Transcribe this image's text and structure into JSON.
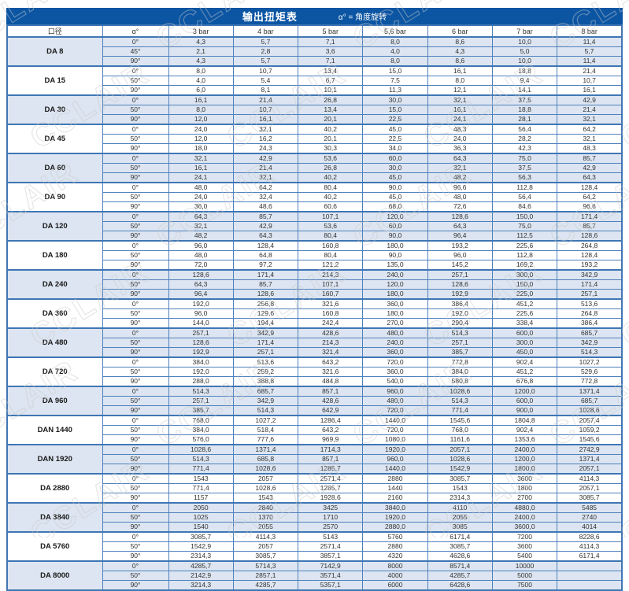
{
  "title": {
    "main": "输出扭矩表",
    "note": "α° = 角度旋转"
  },
  "watermark": "CCLAIR",
  "colors": {
    "title_bg": "#0b55a3",
    "border": "#4f81bd",
    "outer_border": "#3f76b4",
    "row_alt_bg": "#dce5f1",
    "text": "#333333",
    "watermark": "#c9c9c9"
  },
  "columns": [
    "口径",
    "α°",
    "3 bar",
    "4 bar",
    "5 bar",
    "5,6 bar",
    "6 bar",
    "7 bar",
    "8 bar"
  ],
  "groups": [
    {
      "model": "DA 8",
      "rows": [
        {
          "angle": "0°",
          "values": [
            "4,3",
            "5,7",
            "7,1",
            "8,0",
            "8,6",
            "10,0",
            "11,4"
          ]
        },
        {
          "angle": "45°",
          "values": [
            "2,1",
            "2,8",
            "3,6",
            "4,0",
            "4,3",
            "5,0",
            "5,7"
          ]
        },
        {
          "angle": "90°",
          "values": [
            "4,3",
            "5,7",
            "7,1",
            "8,0",
            "8,6",
            "10,0",
            "11,4"
          ]
        }
      ]
    },
    {
      "model": "DA 15",
      "rows": [
        {
          "angle": "0°",
          "values": [
            "8,0",
            "10,7",
            "13,4",
            "15,0",
            "16,1",
            "18,8",
            "21,4"
          ]
        },
        {
          "angle": "50°",
          "values": [
            "4,0",
            "5,4",
            "6,7",
            "7,5",
            "8,0",
            "9,4",
            "10,7"
          ]
        },
        {
          "angle": "90°",
          "values": [
            "6,0",
            "8,1",
            "10,1",
            "11,3",
            "12,1",
            "14,1",
            "16,1"
          ]
        }
      ]
    },
    {
      "model": "DA 30",
      "rows": [
        {
          "angle": "0°",
          "values": [
            "16,1",
            "21,4",
            "26,8",
            "30,0",
            "32,1",
            "37,5",
            "42,9"
          ]
        },
        {
          "angle": "50°",
          "values": [
            "8,0",
            "10,7",
            "13,4",
            "15,0",
            "16,1",
            "18,8",
            "21,4"
          ]
        },
        {
          "angle": "90°",
          "values": [
            "12,0",
            "16,1",
            "20,1",
            "22,5",
            "24,1",
            "28,1",
            "32,1"
          ]
        }
      ]
    },
    {
      "model": "DA 45",
      "rows": [
        {
          "angle": "0°",
          "values": [
            "24,0",
            "32,1",
            "40,2",
            "45,0",
            "48,3",
            "56,4",
            "64,2"
          ]
        },
        {
          "angle": "50°",
          "values": [
            "12,0",
            "16,2",
            "20,1",
            "22,5",
            "24,0",
            "28,2",
            "32,1"
          ]
        },
        {
          "angle": "90°",
          "values": [
            "18,0",
            "24,3",
            "30,3",
            "34,0",
            "36,3",
            "42,3",
            "48,3"
          ]
        }
      ]
    },
    {
      "model": "DA 60",
      "rows": [
        {
          "angle": "0°",
          "values": [
            "32,1",
            "42,9",
            "53,6",
            "60,0",
            "64,3",
            "75,0",
            "85,7"
          ]
        },
        {
          "angle": "50°",
          "values": [
            "16,1",
            "21,4",
            "26,8",
            "30,0",
            "32,1",
            "37,5",
            "42,9"
          ]
        },
        {
          "angle": "90°",
          "values": [
            "24,1",
            "32,1",
            "40,2",
            "45,0",
            "48,2",
            "56,3",
            "64,3"
          ]
        }
      ]
    },
    {
      "model": "DA 90",
      "rows": [
        {
          "angle": "0°",
          "values": [
            "48,0",
            "64,2",
            "80,4",
            "90,0",
            "96,6",
            "112,8",
            "128,4"
          ]
        },
        {
          "angle": "50°",
          "values": [
            "24,0",
            "32,4",
            "40,2",
            "45,0",
            "48,0",
            "56,4",
            "64,2"
          ]
        },
        {
          "angle": "90°",
          "values": [
            "36,0",
            "48,6",
            "60,6",
            "68,0",
            "72,6",
            "84,6",
            "96,6"
          ]
        }
      ]
    },
    {
      "model": "DA 120",
      "rows": [
        {
          "angle": "0°",
          "values": [
            "64,3",
            "85,7",
            "107,1",
            "120,0",
            "128,6",
            "150,0",
            "171,4"
          ]
        },
        {
          "angle": "50°",
          "values": [
            "32,1",
            "42,9",
            "53,6",
            "60,0",
            "64,3",
            "75,0",
            "85,7"
          ]
        },
        {
          "angle": "90°",
          "values": [
            "48,2",
            "64,3",
            "80,4",
            "90,0",
            "96,4",
            "112,5",
            "128,6"
          ]
        }
      ]
    },
    {
      "model": "DA 180",
      "rows": [
        {
          "angle": "0°",
          "values": [
            "96,0",
            "128,4",
            "160,8",
            "180,0",
            "193,2",
            "225,6",
            "264,8"
          ]
        },
        {
          "angle": "50°",
          "values": [
            "48,0",
            "64,8",
            "80,4",
            "90,0",
            "96,0",
            "112,8",
            "128,4"
          ]
        },
        {
          "angle": "90°",
          "values": [
            "72,0",
            "97,2",
            "121,2",
            "135,0",
            "145,2",
            "169,2",
            "193,2"
          ]
        }
      ]
    },
    {
      "model": "DA 240",
      "rows": [
        {
          "angle": "0°",
          "values": [
            "128,6",
            "171,4",
            "214,3",
            "240,0",
            "257,1",
            "300,0",
            "342,9"
          ]
        },
        {
          "angle": "50°",
          "values": [
            "64,3",
            "85,7",
            "107,1",
            "120,0",
            "128,6",
            "150,0",
            "171,4"
          ]
        },
        {
          "angle": "90°",
          "values": [
            "96,4",
            "128,6",
            "160,7",
            "180,0",
            "192,9",
            "225,0",
            "257,1"
          ]
        }
      ]
    },
    {
      "model": "DA 360",
      "rows": [
        {
          "angle": "0°",
          "values": [
            "192,0",
            "256,8",
            "321,6",
            "360,0",
            "386,4",
            "451,2",
            "513,6"
          ]
        },
        {
          "angle": "50°",
          "values": [
            "96,0",
            "129,6",
            "160,8",
            "180,0",
            "192,0",
            "225,6",
            "264,8"
          ]
        },
        {
          "angle": "90°",
          "values": [
            "144,0",
            "194,4",
            "242,4",
            "270,0",
            "290,4",
            "338,4",
            "386,4"
          ]
        }
      ]
    },
    {
      "model": "DA 480",
      "rows": [
        {
          "angle": "0°",
          "values": [
            "257,1",
            "342,9",
            "428,6",
            "480,0",
            "514,3",
            "600,0",
            "685,7"
          ]
        },
        {
          "angle": "50°",
          "values": [
            "128,6",
            "171,4",
            "214,3",
            "240,0",
            "257,1",
            "300,0",
            "342,9"
          ]
        },
        {
          "angle": "90°",
          "values": [
            "192,9",
            "257,1",
            "321,4",
            "360,0",
            "385,7",
            "450,0",
            "514,3"
          ]
        }
      ]
    },
    {
      "model": "DA 720",
      "rows": [
        {
          "angle": "0°",
          "values": [
            "384,0",
            "513,6",
            "643,2",
            "720,0",
            "772,8",
            "902,4",
            "1027,2"
          ]
        },
        {
          "angle": "50°",
          "values": [
            "192,0",
            "259,2",
            "321,6",
            "360,0",
            "384,0",
            "451,2",
            "529,6"
          ]
        },
        {
          "angle": "90°",
          "values": [
            "288,0",
            "388,8",
            "484,8",
            "540,0",
            "580,8",
            "676,8",
            "772,8"
          ]
        }
      ]
    },
    {
      "model": "DA 960",
      "rows": [
        {
          "angle": "0°",
          "values": [
            "514,3",
            "685,7",
            "857,1",
            "960,0",
            "1028,6",
            "1200,0",
            "1371,4"
          ]
        },
        {
          "angle": "50°",
          "values": [
            "257,1",
            "342,9",
            "428,6",
            "480,0",
            "514,3",
            "600,0",
            "685,7"
          ]
        },
        {
          "angle": "90°",
          "values": [
            "385,7",
            "514,3",
            "642,9",
            "720,0",
            "771,4",
            "900,0",
            "1028,6"
          ]
        }
      ]
    },
    {
      "model": "DAN 1440",
      "rows": [
        {
          "angle": "0°",
          "values": [
            "768,0",
            "1027,2",
            "1286,4",
            "1440,0",
            "1545,6",
            "1804,8",
            "2057,4"
          ]
        },
        {
          "angle": "50°",
          "values": [
            "384,0",
            "518,4",
            "643,2",
            "720,0",
            "768,0",
            "902,4",
            "1059,2"
          ]
        },
        {
          "angle": "90°",
          "values": [
            "576,0",
            "777,6",
            "969,9",
            "1080,0",
            "1161,6",
            "1353,6",
            "1545,6"
          ]
        }
      ]
    },
    {
      "model": "DAN 1920",
      "rows": [
        {
          "angle": "0°",
          "values": [
            "1028,6",
            "1371,4",
            "1714,3",
            "1920,0",
            "2057,1",
            "2400,0",
            "2742,9"
          ]
        },
        {
          "angle": "50°",
          "values": [
            "514,3",
            "685,8",
            "857,1",
            "960,0",
            "1028,6",
            "1200,0",
            "1371,4"
          ]
        },
        {
          "angle": "90°",
          "values": [
            "771,4",
            "1028,6",
            "1285,7",
            "1440,0",
            "1542,9",
            "1800,0",
            "2057,1"
          ]
        }
      ]
    },
    {
      "model": "DA 2880",
      "rows": [
        {
          "angle": "0°",
          "values": [
            "1543",
            "2057",
            "2571,4",
            "2880",
            "3085,7",
            "3600",
            "4114,3"
          ]
        },
        {
          "angle": "50°",
          "values": [
            "771,4",
            "1028,6",
            "1285,7",
            "1440",
            "1543",
            "1800",
            "2057,1"
          ]
        },
        {
          "angle": "90°",
          "values": [
            "1157",
            "1543",
            "1928,6",
            "2160",
            "2314,3",
            "2700",
            "3085,7"
          ]
        }
      ]
    },
    {
      "model": "DA 3840",
      "rows": [
        {
          "angle": "0°",
          "values": [
            "2050",
            "2840",
            "3425",
            "3840,0",
            "4110",
            "4880,0",
            "5485"
          ]
        },
        {
          "angle": "50°",
          "values": [
            "1025",
            "1370",
            "1710",
            "1920,0",
            "2055",
            "2400,0",
            "2740"
          ]
        },
        {
          "angle": "90°",
          "values": [
            "1540",
            "2055",
            "2570",
            "2880,0",
            "3085",
            "3600,0",
            "4014"
          ]
        }
      ]
    },
    {
      "model": "DA 5760",
      "rows": [
        {
          "angle": "0°",
          "values": [
            "3085,7",
            "4114,3",
            "5143",
            "5760",
            "6171,4",
            "7200",
            "8228,6"
          ]
        },
        {
          "angle": "50°",
          "values": [
            "1542,9",
            "2057",
            "2571,4",
            "2880",
            "3085,7",
            "3600",
            "4114,3"
          ]
        },
        {
          "angle": "90°",
          "values": [
            "2314,3",
            "3085,7",
            "3857,1",
            "4320",
            "4628,6",
            "5400",
            "6171,4"
          ]
        }
      ]
    },
    {
      "model": "DA 8000",
      "rows": [
        {
          "angle": "0°",
          "values": [
            "4285,7",
            "5714,3",
            "7142,9",
            "8000",
            "8571,4",
            "10000",
            ""
          ]
        },
        {
          "angle": "50°",
          "values": [
            "2142,9",
            "2857,1",
            "3571,4",
            "4000",
            "4285,7",
            "5000",
            ""
          ]
        },
        {
          "angle": "90°",
          "values": [
            "3214,3",
            "4285,7",
            "5357,1",
            "6000",
            "6428,6",
            "7500",
            ""
          ]
        }
      ]
    }
  ]
}
